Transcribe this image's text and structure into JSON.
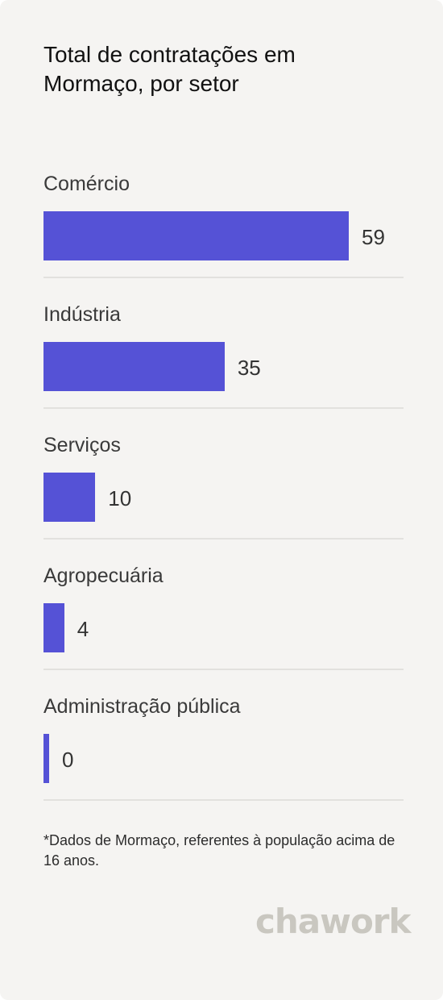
{
  "chart_data": {
    "type": "bar",
    "orientation": "horizontal",
    "title": "Total de contratações em Mormaço, por setor",
    "categories": [
      "Comércio",
      "Indústria",
      "Serviços",
      "Agropecuária",
      "Administração pública"
    ],
    "values": [
      59,
      35,
      10,
      4,
      0
    ],
    "xlim": [
      0,
      59
    ],
    "grid": false,
    "bar_color": "#5552d6"
  },
  "footnote": "*Dados de Mormaço, referentes à população acima de 16 anos.",
  "brand": "chawork"
}
